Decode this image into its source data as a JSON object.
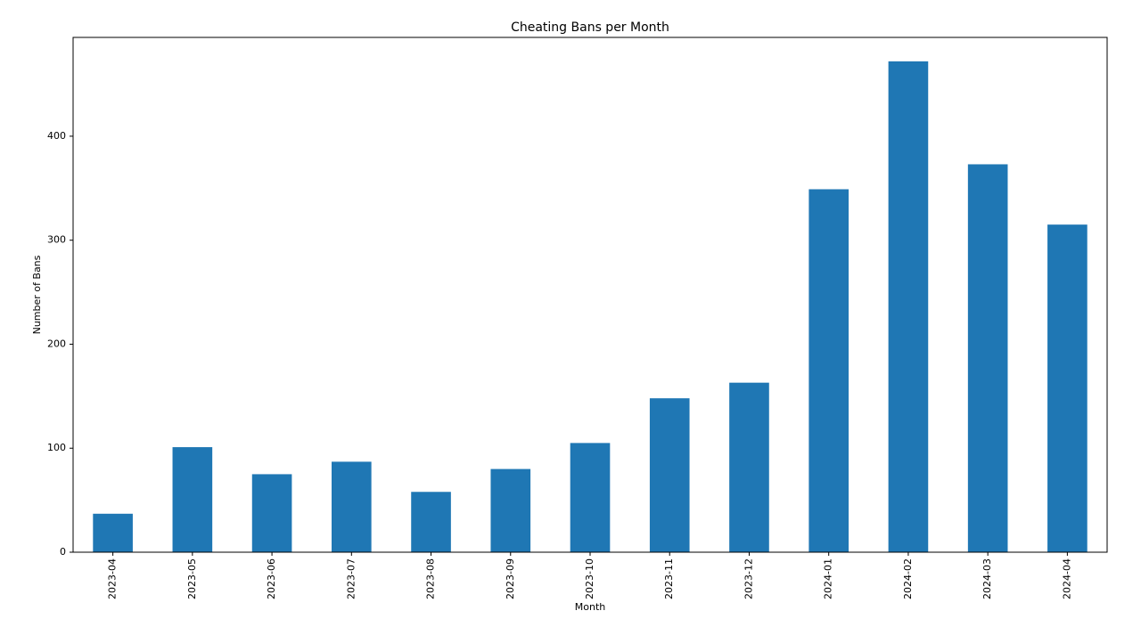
{
  "chart_data": {
    "type": "bar",
    "title": "Cheating Bans per Month",
    "xlabel": "Month",
    "ylabel": "Number of Bans",
    "categories": [
      "2023-04",
      "2023-05",
      "2023-06",
      "2023-07",
      "2023-08",
      "2023-09",
      "2023-10",
      "2023-11",
      "2023-12",
      "2024-01",
      "2024-02",
      "2024-03",
      "2024-04"
    ],
    "values": [
      37,
      101,
      75,
      87,
      58,
      80,
      105,
      148,
      163,
      349,
      472,
      373,
      315
    ],
    "ylim": [
      0,
      495
    ],
    "yticks": [
      0,
      100,
      200,
      300,
      400
    ],
    "bar_color": "#1f77b4",
    "grid": false,
    "legend": "none"
  }
}
